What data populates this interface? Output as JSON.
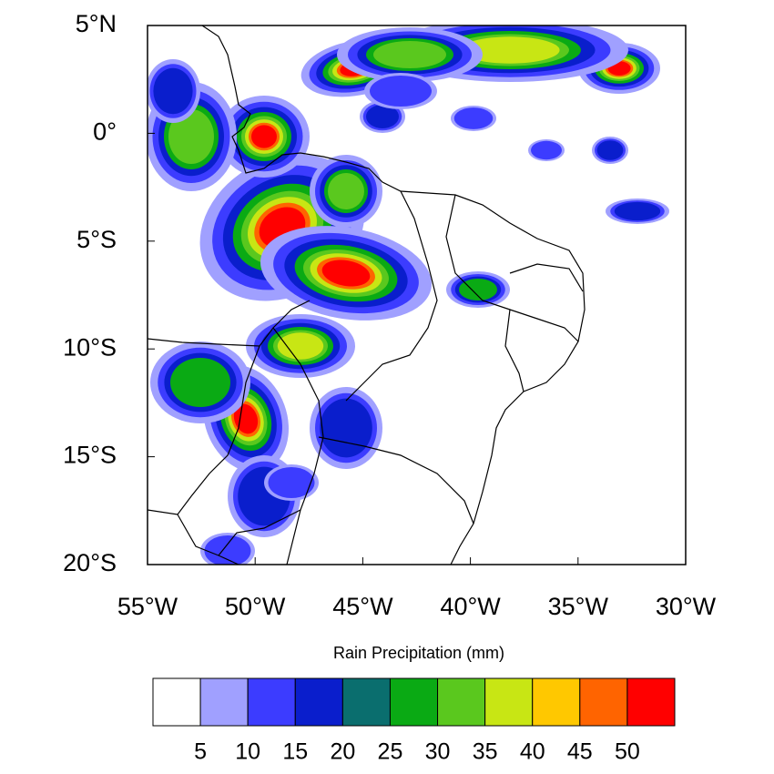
{
  "map": {
    "xlim": [
      -55,
      -30
    ],
    "ylim": [
      -20,
      5
    ],
    "xticks": [
      {
        "value": -55,
        "label": "55°W"
      },
      {
        "value": -50,
        "label": "50°W"
      },
      {
        "value": -45,
        "label": "45°W"
      },
      {
        "value": -40,
        "label": "40°W"
      },
      {
        "value": -35,
        "label": "35°W"
      },
      {
        "value": -30,
        "label": "30°W"
      }
    ],
    "yticks": [
      {
        "value": 5,
        "label": "5°N"
      },
      {
        "value": 0,
        "label": "0°"
      },
      {
        "value": -5,
        "label": "5°S"
      },
      {
        "value": -10,
        "label": "10°S"
      },
      {
        "value": -15,
        "label": "15°S"
      },
      {
        "value": -20,
        "label": "20°S"
      }
    ]
  },
  "colorbar": {
    "title": "Rain Precipitation (mm)",
    "levels": [
      5,
      10,
      15,
      20,
      25,
      30,
      35,
      40,
      45,
      50
    ],
    "colors": [
      "#ffffff",
      "#a0a0ff",
      "#3c3cff",
      "#0a1ecc",
      "#0a6e6e",
      "#0aaa14",
      "#5ac81e",
      "#c8e614",
      "#ffc800",
      "#ff6400",
      "#ff0000"
    ]
  }
}
